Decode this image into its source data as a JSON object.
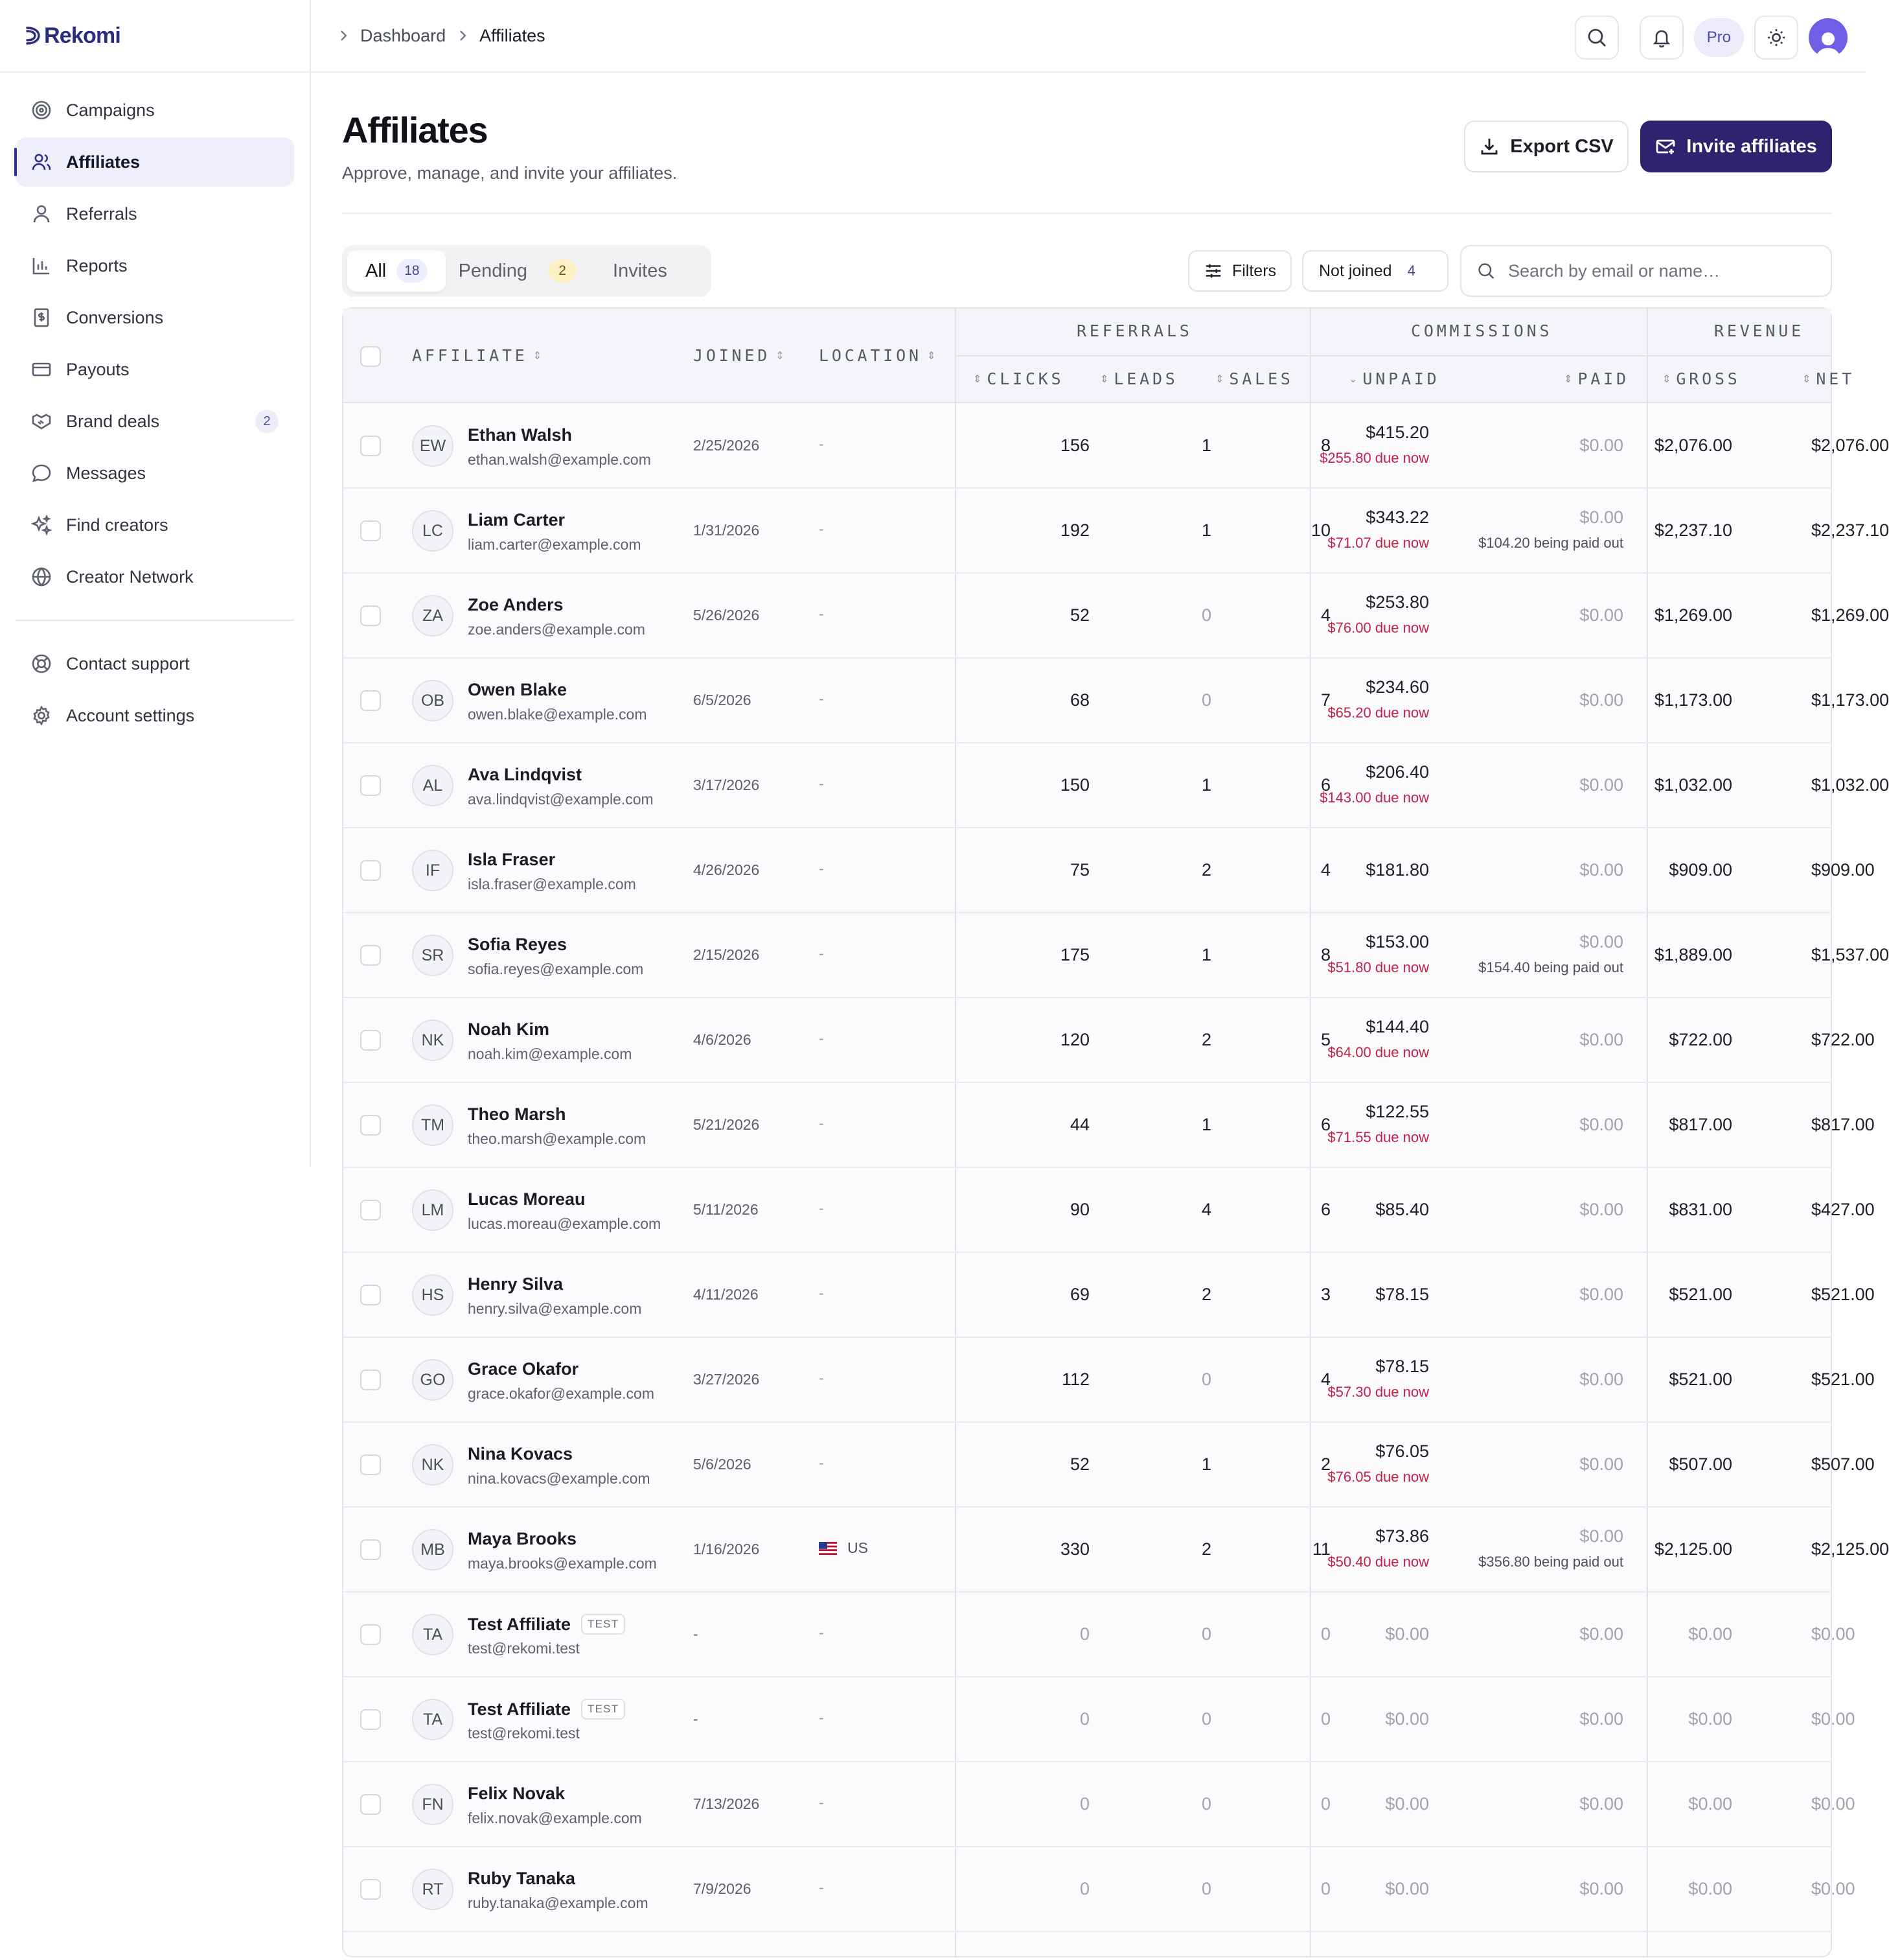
{
  "app": {
    "brand": "Rekomi"
  },
  "sidebar": {
    "items": [
      {
        "label": "Campaigns",
        "icon": "target-icon"
      },
      {
        "label": "Affiliates",
        "icon": "users-icon",
        "active": true
      },
      {
        "label": "Referrals",
        "icon": "user-icon"
      },
      {
        "label": "Reports",
        "icon": "bar-chart-icon"
      },
      {
        "label": "Conversions",
        "icon": "receipt-icon"
      },
      {
        "label": "Payouts",
        "icon": "credit-card-icon"
      },
      {
        "label": "Brand deals",
        "icon": "handshake-icon",
        "badge": "2"
      },
      {
        "label": "Messages",
        "icon": "message-icon"
      },
      {
        "label": "Find creators",
        "icon": "sparkles-icon"
      },
      {
        "label": "Creator Network",
        "icon": "globe-icon"
      }
    ],
    "bottom_items": [
      {
        "label": "Contact support",
        "icon": "lifebuoy-icon"
      },
      {
        "label": "Account settings",
        "icon": "gear-icon"
      }
    ]
  },
  "topbar": {
    "breadcrumbs": [
      "Dashboard",
      "Affiliates"
    ],
    "pro_label": "Pro"
  },
  "page": {
    "title": "Affiliates",
    "subtitle": "Approve, manage, and invite your affiliates.",
    "export_label": "Export CSV",
    "invite_label": "Invite affiliates"
  },
  "tabs": [
    {
      "label": "All",
      "count": "18",
      "active": true
    },
    {
      "label": "Pending",
      "count": "2"
    },
    {
      "label": "Invites"
    }
  ],
  "filters": {
    "filters_label": "Filters",
    "not_joined_label": "Not joined",
    "not_joined_count": "4",
    "search_placeholder": "Search by email or name…"
  },
  "table": {
    "groups": {
      "referrals": "REFERRALS",
      "commissions": "COMMISSIONS",
      "revenue": "REVENUE"
    },
    "headers": {
      "affiliate": "AFFILIATE",
      "joined": "JOINED",
      "location": "LOCATION",
      "clicks": "CLICKS",
      "leads": "LEADS",
      "sales": "SALES",
      "unpaid": "UNPAID",
      "paid": "PAID",
      "gross": "GROSS",
      "net": "NET"
    },
    "rows": [
      {
        "initials": "EW",
        "name": "Ethan Walsh",
        "email": "ethan.walsh@example.com",
        "joined": "2/25/2026",
        "location": "-",
        "clicks": "156",
        "leads": "1",
        "sales": "8",
        "unpaid": "$415.20",
        "unpaid_due": "$255.80 due now",
        "paid": "$0.00",
        "paid_sub": "",
        "gross": "$2,076.00",
        "net": "$2,076.00"
      },
      {
        "initials": "LC",
        "name": "Liam Carter",
        "email": "liam.carter@example.com",
        "joined": "1/31/2026",
        "location": "-",
        "clicks": "192",
        "leads": "1",
        "sales": "10",
        "unpaid": "$343.22",
        "unpaid_due": "$71.07 due now",
        "paid": "$0.00",
        "paid_sub": "$104.20 being paid out",
        "gross": "$2,237.10",
        "net": "$2,237.10"
      },
      {
        "initials": "ZA",
        "name": "Zoe Anders",
        "email": "zoe.anders@example.com",
        "joined": "5/26/2026",
        "location": "-",
        "clicks": "52",
        "leads": "0",
        "sales": "4",
        "unpaid": "$253.80",
        "unpaid_due": "$76.00 due now",
        "paid": "$0.00",
        "paid_sub": "",
        "gross": "$1,269.00",
        "net": "$1,269.00"
      },
      {
        "initials": "OB",
        "name": "Owen Blake",
        "email": "owen.blake@example.com",
        "joined": "6/5/2026",
        "location": "-",
        "clicks": "68",
        "leads": "0",
        "sales": "7",
        "unpaid": "$234.60",
        "unpaid_due": "$65.20 due now",
        "paid": "$0.00",
        "paid_sub": "",
        "gross": "$1,173.00",
        "net": "$1,173.00"
      },
      {
        "initials": "AL",
        "name": "Ava Lindqvist",
        "email": "ava.lindqvist@example.com",
        "joined": "3/17/2026",
        "location": "-",
        "clicks": "150",
        "leads": "1",
        "sales": "6",
        "unpaid": "$206.40",
        "unpaid_due": "$143.00 due now",
        "paid": "$0.00",
        "paid_sub": "",
        "gross": "$1,032.00",
        "net": "$1,032.00"
      },
      {
        "initials": "IF",
        "name": "Isla Fraser",
        "email": "isla.fraser@example.com",
        "joined": "4/26/2026",
        "location": "-",
        "clicks": "75",
        "leads": "2",
        "sales": "4",
        "unpaid": "$181.80",
        "unpaid_due": "",
        "paid": "$0.00",
        "paid_sub": "",
        "gross": "$909.00",
        "net": "$909.00"
      },
      {
        "initials": "SR",
        "name": "Sofia Reyes",
        "email": "sofia.reyes@example.com",
        "joined": "2/15/2026",
        "location": "-",
        "clicks": "175",
        "leads": "1",
        "sales": "8",
        "unpaid": "$153.00",
        "unpaid_due": "$51.80 due now",
        "paid": "$0.00",
        "paid_sub": "$154.40 being paid out",
        "gross": "$1,889.00",
        "net": "$1,537.00"
      },
      {
        "initials": "NK",
        "name": "Noah Kim",
        "email": "noah.kim@example.com",
        "joined": "4/6/2026",
        "location": "-",
        "clicks": "120",
        "leads": "2",
        "sales": "5",
        "unpaid": "$144.40",
        "unpaid_due": "$64.00 due now",
        "paid": "$0.00",
        "paid_sub": "",
        "gross": "$722.00",
        "net": "$722.00"
      },
      {
        "initials": "TM",
        "name": "Theo Marsh",
        "email": "theo.marsh@example.com",
        "joined": "5/21/2026",
        "location": "-",
        "clicks": "44",
        "leads": "1",
        "sales": "6",
        "unpaid": "$122.55",
        "unpaid_due": "$71.55 due now",
        "paid": "$0.00",
        "paid_sub": "",
        "gross": "$817.00",
        "net": "$817.00"
      },
      {
        "initials": "LM",
        "name": "Lucas Moreau",
        "email": "lucas.moreau@example.com",
        "joined": "5/11/2026",
        "location": "-",
        "clicks": "90",
        "leads": "4",
        "sales": "6",
        "unpaid": "$85.40",
        "unpaid_due": "",
        "paid": "$0.00",
        "paid_sub": "",
        "gross": "$831.00",
        "net": "$427.00"
      },
      {
        "initials": "HS",
        "name": "Henry Silva",
        "email": "henry.silva@example.com",
        "joined": "4/11/2026",
        "location": "-",
        "clicks": "69",
        "leads": "2",
        "sales": "3",
        "unpaid": "$78.15",
        "unpaid_due": "",
        "paid": "$0.00",
        "paid_sub": "",
        "gross": "$521.00",
        "net": "$521.00"
      },
      {
        "initials": "GO",
        "name": "Grace Okafor",
        "email": "grace.okafor@example.com",
        "joined": "3/27/2026",
        "location": "-",
        "clicks": "112",
        "leads": "0",
        "sales": "4",
        "unpaid": "$78.15",
        "unpaid_due": "$57.30 due now",
        "paid": "$0.00",
        "paid_sub": "",
        "gross": "$521.00",
        "net": "$521.00"
      },
      {
        "initials": "NK",
        "name": "Nina Kovacs",
        "email": "nina.kovacs@example.com",
        "joined": "5/6/2026",
        "location": "-",
        "clicks": "52",
        "leads": "1",
        "sales": "2",
        "unpaid": "$76.05",
        "unpaid_due": "$76.05 due now",
        "paid": "$0.00",
        "paid_sub": "",
        "gross": "$507.00",
        "net": "$507.00"
      },
      {
        "initials": "MB",
        "name": "Maya Brooks",
        "email": "maya.brooks@example.com",
        "joined": "1/16/2026",
        "location": "US",
        "flag": true,
        "clicks": "330",
        "leads": "2",
        "sales": "11",
        "unpaid": "$73.86",
        "unpaid_due": "$50.40 due now",
        "paid": "$0.00",
        "paid_sub": "$356.80 being paid out",
        "gross": "$2,125.00",
        "net": "$2,125.00"
      },
      {
        "initials": "TA",
        "name": "Test Affiliate",
        "test": "TEST",
        "email": "test@rekomi.test",
        "joined": "-",
        "location": "-",
        "clicks": "0",
        "leads": "0",
        "sales": "0",
        "unpaid": "$0.00",
        "unpaid_due": "",
        "paid": "$0.00",
        "paid_sub": "",
        "gross": "$0.00",
        "net": "$0.00"
      },
      {
        "initials": "TA",
        "name": "Test Affiliate",
        "test": "TEST",
        "email": "test@rekomi.test",
        "joined": "-",
        "location": "-",
        "clicks": "0",
        "leads": "0",
        "sales": "0",
        "unpaid": "$0.00",
        "unpaid_due": "",
        "paid": "$0.00",
        "paid_sub": "",
        "gross": "$0.00",
        "net": "$0.00"
      },
      {
        "initials": "FN",
        "name": "Felix Novak",
        "email": "felix.novak@example.com",
        "joined": "7/13/2026",
        "location": "-",
        "clicks": "0",
        "leads": "0",
        "sales": "0",
        "unpaid": "$0.00",
        "unpaid_due": "",
        "paid": "$0.00",
        "paid_sub": "",
        "gross": "$0.00",
        "net": "$0.00"
      },
      {
        "initials": "RT",
        "name": "Ruby Tanaka",
        "email": "ruby.tanaka@example.com",
        "joined": "7/9/2026",
        "location": "-",
        "clicks": "0",
        "leads": "0",
        "sales": "0",
        "unpaid": "$0.00",
        "unpaid_due": "",
        "paid": "$0.00",
        "paid_sub": "",
        "gross": "$0.00",
        "net": "$0.00"
      }
    ]
  },
  "colors": {
    "accent": "#2f236f",
    "active_nav_bg": "#eeeffa",
    "due": "#c22047",
    "brand": "#2a2d7c"
  }
}
